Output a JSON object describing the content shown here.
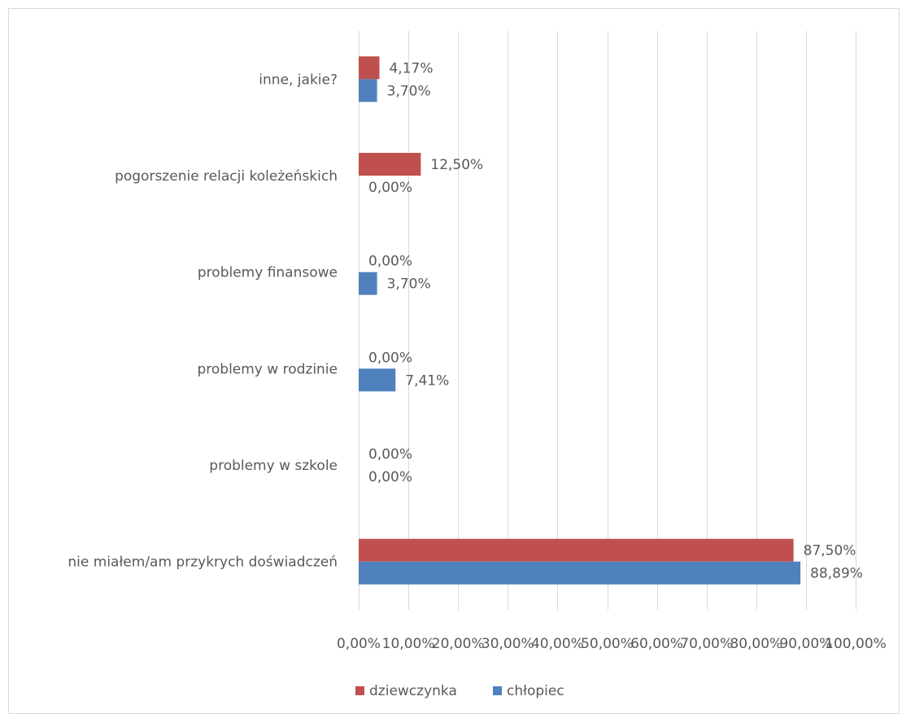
{
  "chart_data": {
    "type": "bar",
    "orientation": "horizontal",
    "categories": [
      "inne, jakie?",
      "pogorszenie relacji koleżeńskich",
      "problemy finansowe",
      "problemy w rodzinie",
      "problemy w szkole",
      "nie miałem/am przykrych doświadczeń"
    ],
    "series": [
      {
        "name": "dziewczynka",
        "color": "#c0504d",
        "values": [
          4.17,
          12.5,
          0,
          0,
          0,
          87.5
        ],
        "labels": [
          "4,17%",
          "12,50%",
          "0,00%",
          "0,00%",
          "0,00%",
          "87,50%"
        ]
      },
      {
        "name": "chłopiec",
        "color": "#4f81bd",
        "values": [
          3.7,
          0,
          3.7,
          7.41,
          0,
          88.89
        ],
        "labels": [
          "3,70%",
          "0,00%",
          "3,70%",
          "7,41%",
          "0,00%",
          "88,89%"
        ]
      }
    ],
    "xlim": [
      0,
      100
    ],
    "xticks": [
      "0,00%",
      "10,00%",
      "20,00%",
      "30,00%",
      "40,00%",
      "50,00%",
      "60,00%",
      "70,00%",
      "80,00%",
      "90,00%",
      "100,00%"
    ],
    "grid": true,
    "legend_position": "bottom"
  }
}
